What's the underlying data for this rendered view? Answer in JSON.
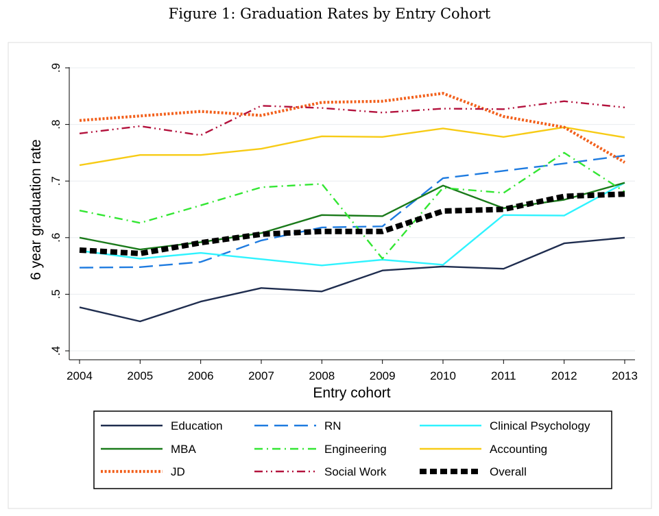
{
  "figure_title": "Figure 1: Graduation Rates by Entry Cohort",
  "chart_data": {
    "type": "line",
    "title": "Figure 1: Graduation Rates by Entry Cohort",
    "xlabel": "Entry cohort",
    "ylabel": "6 year graduation rate",
    "x": [
      2004,
      2005,
      2006,
      2007,
      2008,
      2009,
      2010,
      2011,
      2012,
      2013
    ],
    "xlim": [
      2004,
      2013
    ],
    "ylim": [
      0.4,
      0.9
    ],
    "yticks": [
      0.4,
      0.5,
      0.6,
      0.7,
      0.8,
      0.9
    ],
    "ytick_labels": [
      ".4",
      ".5",
      ".6",
      ".7",
      ".8",
      ".9"
    ],
    "xtick_labels": [
      "2004",
      "2005",
      "2006",
      "2007",
      "2008",
      "2009",
      "2010",
      "2011",
      "2012",
      "2013"
    ],
    "grid": "horizontal",
    "legend_position": "bottom",
    "series": [
      {
        "name": "Education",
        "color": "#1f2d4f",
        "dash": "solid",
        "values": [
          0.477,
          0.452,
          0.487,
          0.511,
          0.505,
          0.542,
          0.549,
          0.545,
          0.59,
          0.6
        ]
      },
      {
        "name": "RN",
        "color": "#1e7be0",
        "dash": "longdash",
        "values": [
          0.547,
          0.548,
          0.557,
          0.595,
          0.618,
          0.62,
          0.705,
          0.718,
          0.731,
          0.745
        ]
      },
      {
        "name": "Clinical Psychology",
        "color": "#2ff3ff",
        "dash": "solid",
        "values": [
          0.577,
          0.563,
          0.573,
          0.562,
          0.551,
          0.561,
          0.552,
          0.64,
          0.639,
          0.697
        ]
      },
      {
        "name": "MBA",
        "color": "#1a7a1a",
        "dash": "solid",
        "values": [
          0.6,
          0.579,
          0.592,
          0.608,
          0.64,
          0.638,
          0.692,
          0.652,
          0.667,
          0.697
        ]
      },
      {
        "name": "Engineering",
        "color": "#33e633",
        "dash": "dashdot",
        "values": [
          0.648,
          0.626,
          0.657,
          0.689,
          0.695,
          0.563,
          0.688,
          0.679,
          0.75,
          0.681
        ]
      },
      {
        "name": "Accounting",
        "color": "#f7cb15",
        "dash": "solid",
        "values": [
          0.728,
          0.746,
          0.746,
          0.757,
          0.779,
          0.778,
          0.793,
          0.778,
          0.795,
          0.777
        ]
      },
      {
        "name": "JD",
        "color": "#f2601c",
        "dash": "dot",
        "values": [
          0.807,
          0.815,
          0.823,
          0.816,
          0.839,
          0.841,
          0.855,
          0.814,
          0.795,
          0.733
        ]
      },
      {
        "name": "Social Work",
        "color": "#b3123d",
        "dash": "dashdotdot",
        "values": [
          0.784,
          0.797,
          0.781,
          0.833,
          0.829,
          0.821,
          0.828,
          0.827,
          0.841,
          0.83
        ]
      },
      {
        "name": "Overall",
        "color": "#000000",
        "dash": "thickdash",
        "values": [
          0.578,
          0.572,
          0.591,
          0.606,
          0.611,
          0.611,
          0.647,
          0.65,
          0.673,
          0.677
        ]
      }
    ]
  }
}
